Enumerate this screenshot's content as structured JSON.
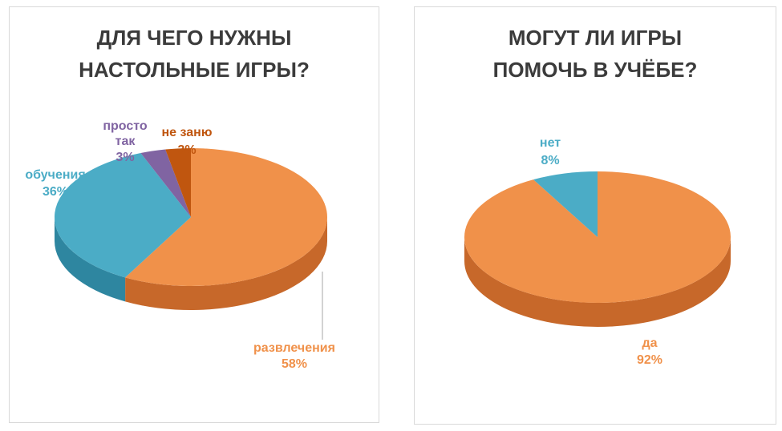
{
  "chart_data": [
    {
      "type": "pie",
      "title": [
        "ДЛЯ ЧЕГО НУЖНЫ",
        "НАСТОЛЬНЫЕ ИГРЫ?"
      ],
      "slices": [
        {
          "label": "развлечения",
          "value": 58,
          "value_label": "58%",
          "color": "#F0914A",
          "side": "#C7682A"
        },
        {
          "label": "обучения",
          "value": 36,
          "value_label": "36%",
          "color": "#4BACC6",
          "side": "#2E86A0"
        },
        {
          "label": "просто так",
          "label_lines": [
            "просто",
            "так"
          ],
          "value": 3,
          "value_label": "3%",
          "color": "#8064A2",
          "side": "#5F4780"
        },
        {
          "label": "не заню",
          "value": 3,
          "value_label": "3%",
          "color": "#C0560F",
          "side": "#8E3D08"
        }
      ]
    },
    {
      "type": "pie",
      "title": [
        "МОГУТ ЛИ ИГРЫ",
        "ПОМОЧЬ В УЧЁБЕ?"
      ],
      "slices": [
        {
          "label": "да",
          "value": 92,
          "value_label": "92%",
          "color": "#F0914A",
          "side": "#C7682A"
        },
        {
          "label": "нет",
          "value": 8,
          "value_label": "8%",
          "color": "#4BACC6",
          "side": "#2E86A0"
        }
      ]
    }
  ]
}
